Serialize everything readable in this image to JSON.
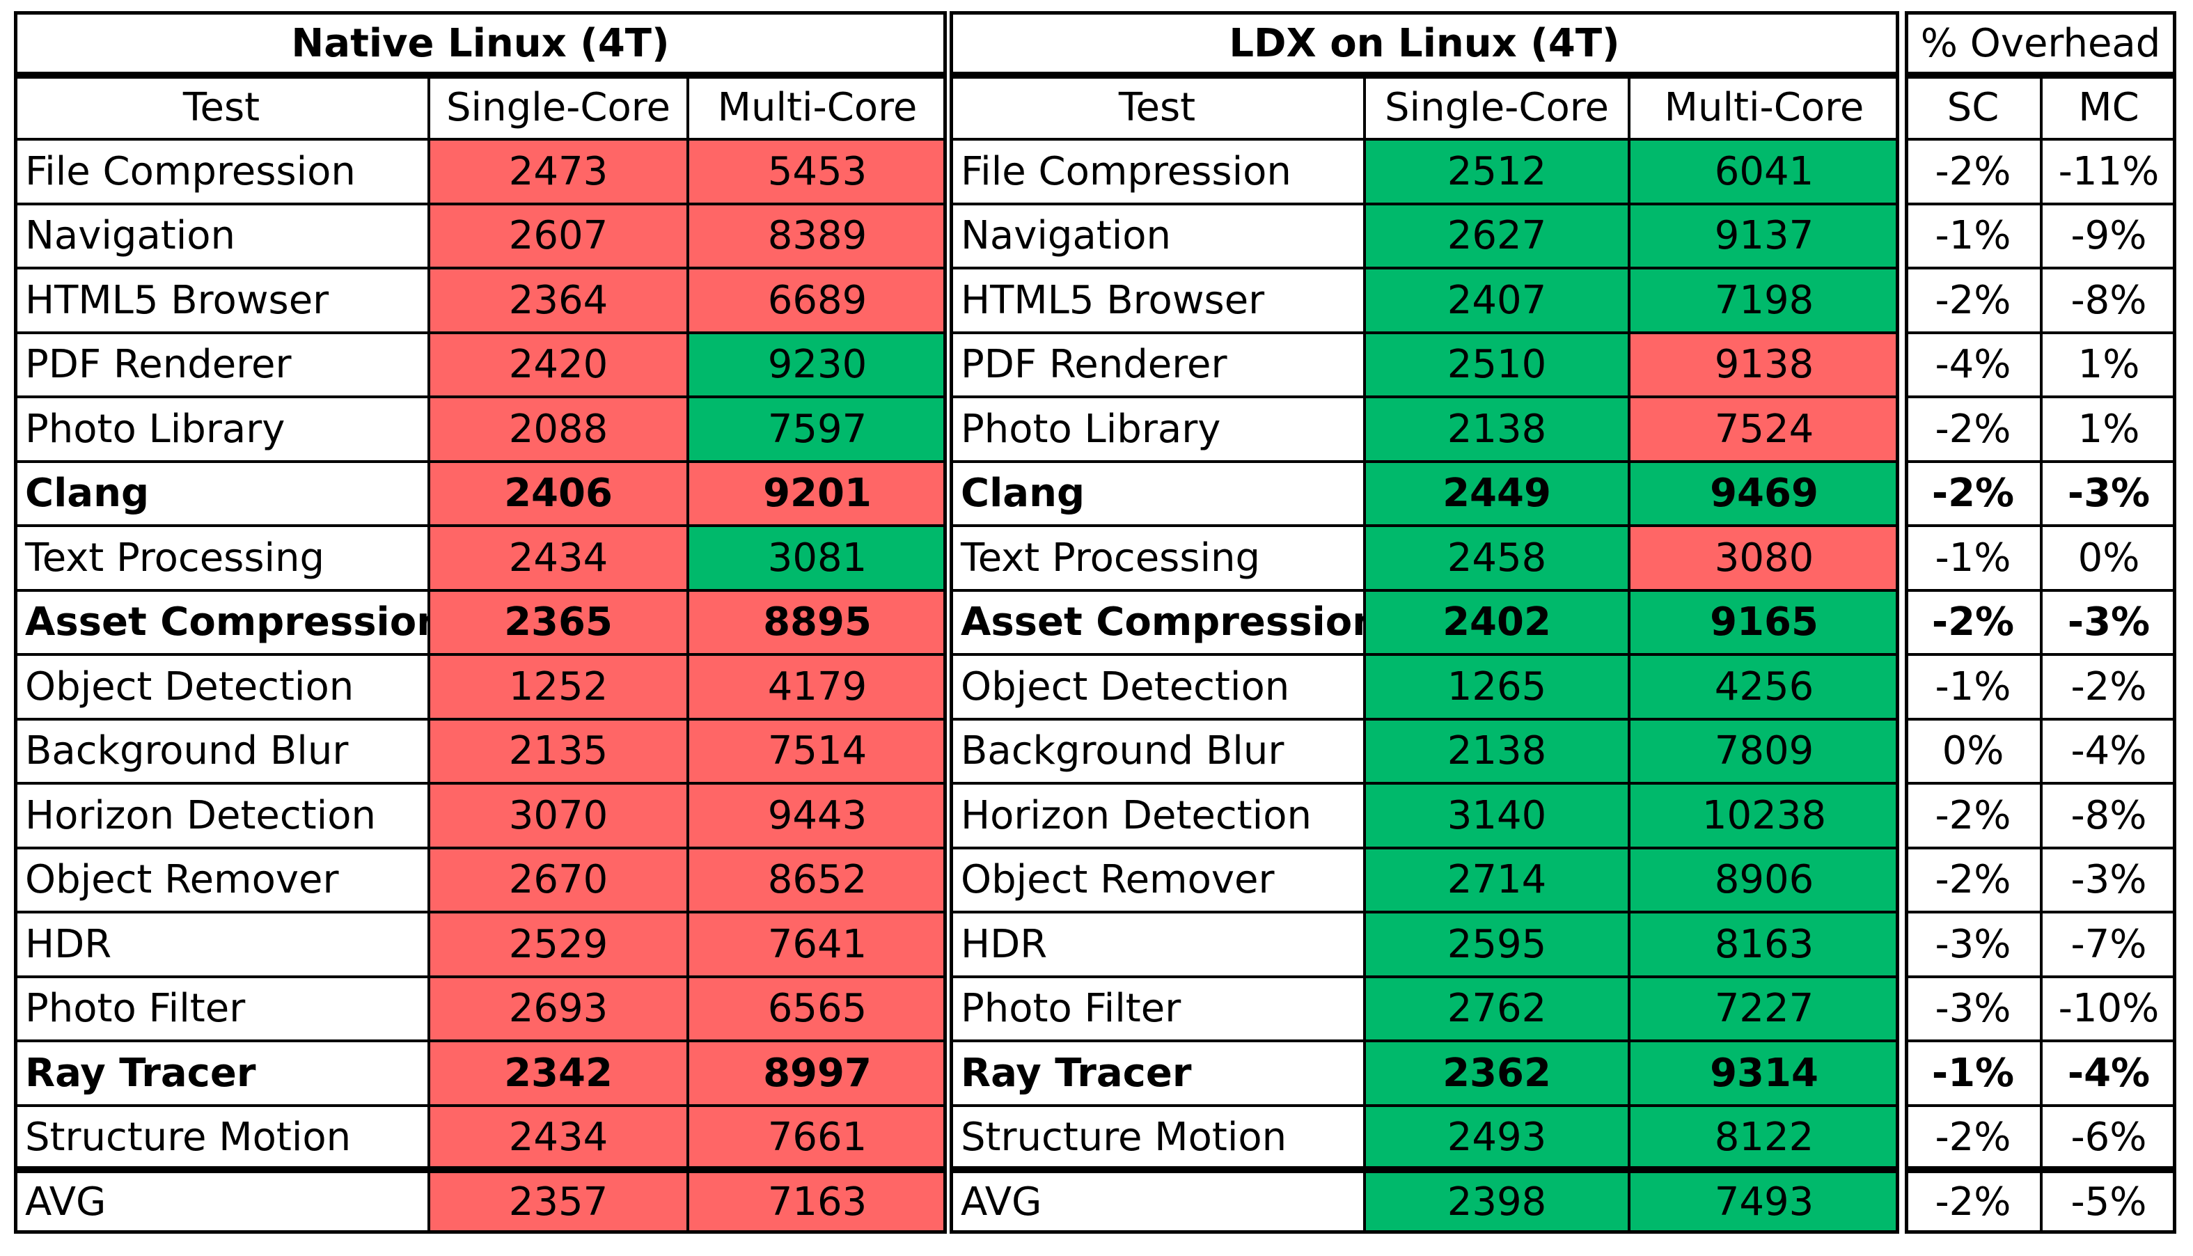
{
  "bold_rows": [
    5,
    7,
    14
  ],
  "native": {
    "title": "Native Linux (4T)",
    "header": [
      "Test",
      "Single-Core",
      "Multi-Core"
    ],
    "rows": [
      [
        "File Compression",
        2473,
        5453
      ],
      [
        "Navigation",
        2607,
        8389
      ],
      [
        "HTML5 Browser",
        2364,
        6689
      ],
      [
        "PDF Renderer",
        2420,
        9230
      ],
      [
        "Photo Library",
        2088,
        7597
      ],
      [
        "Clang",
        2406,
        9201
      ],
      [
        "Text Processing",
        2434,
        3081
      ],
      [
        "Asset Compression",
        2365,
        8895
      ],
      [
        "Object Detection",
        1252,
        4179
      ],
      [
        "Background Blur",
        2135,
        7514
      ],
      [
        "Horizon Detection",
        3070,
        9443
      ],
      [
        "Object Remover",
        2670,
        8652
      ],
      [
        "HDR",
        2529,
        7641
      ],
      [
        "Photo Filter",
        2693,
        6565
      ],
      [
        "Ray Tracer",
        2342,
        8997
      ],
      [
        "Structure Motion",
        2434,
        7661
      ]
    ],
    "fills": [
      [
        "#ff6666",
        "#ff6666"
      ],
      [
        "#ff6666",
        "#ff6666"
      ],
      [
        "#ff6666",
        "#ff6666"
      ],
      [
        "#ff6666",
        "#00b96b"
      ],
      [
        "#ff6666",
        "#00b96b"
      ],
      [
        "#ff6666",
        "#ff6666"
      ],
      [
        "#ff6666",
        "#00b96b"
      ],
      [
        "#ff6666",
        "#ff6666"
      ],
      [
        "#ff6666",
        "#ff6666"
      ],
      [
        "#ff6666",
        "#ff6666"
      ],
      [
        "#ff6666",
        "#ff6666"
      ],
      [
        "#ff6666",
        "#ff6666"
      ],
      [
        "#ff6666",
        "#ff6666"
      ],
      [
        "#ff6666",
        "#ff6666"
      ],
      [
        "#ff6666",
        "#ff6666"
      ],
      [
        "#ff6666",
        "#ff6666"
      ]
    ],
    "avg": [
      "AVG",
      2357,
      7163
    ],
    "avg_fills": [
      "#ff6666",
      "#ff6666"
    ]
  },
  "ldx": {
    "title": "LDX on Linux (4T)",
    "header": [
      "Test",
      "Single-Core",
      "Multi-Core"
    ],
    "rows": [
      [
        "File Compression",
        2512,
        6041
      ],
      [
        "Navigation",
        2627,
        9137
      ],
      [
        "HTML5 Browser",
        2407,
        7198
      ],
      [
        "PDF Renderer",
        2510,
        9138
      ],
      [
        "Photo Library",
        2138,
        7524
      ],
      [
        "Clang",
        2449,
        9469
      ],
      [
        "Text Processing",
        2458,
        3080
      ],
      [
        "Asset Compression",
        2402,
        9165
      ],
      [
        "Object Detection",
        1265,
        4256
      ],
      [
        "Background Blur",
        2138,
        7809
      ],
      [
        "Horizon Detection",
        3140,
        10238
      ],
      [
        "Object Remover",
        2714,
        8906
      ],
      [
        "HDR",
        2595,
        8163
      ],
      [
        "Photo Filter",
        2762,
        7227
      ],
      [
        "Ray Tracer",
        2362,
        9314
      ],
      [
        "Structure Motion",
        2493,
        8122
      ]
    ],
    "fills": [
      [
        "#00b96b",
        "#00b96b"
      ],
      [
        "#00b96b",
        "#00b96b"
      ],
      [
        "#00b96b",
        "#00b96b"
      ],
      [
        "#00b96b",
        "#ff6666"
      ],
      [
        "#00b96b",
        "#ff6666"
      ],
      [
        "#00b96b",
        "#00b96b"
      ],
      [
        "#00b96b",
        "#ff6666"
      ],
      [
        "#00b96b",
        "#00b96b"
      ],
      [
        "#00b96b",
        "#00b96b"
      ],
      [
        "#00b96b",
        "#00b96b"
      ],
      [
        "#00b96b",
        "#00b96b"
      ],
      [
        "#00b96b",
        "#00b96b"
      ],
      [
        "#00b96b",
        "#00b96b"
      ],
      [
        "#00b96b",
        "#00b96b"
      ],
      [
        "#00b96b",
        "#00b96b"
      ],
      [
        "#00b96b",
        "#00b96b"
      ]
    ],
    "avg": [
      "AVG",
      2398,
      7493
    ],
    "avg_fills": [
      "#00b96b",
      "#00b96b"
    ]
  },
  "overhead": {
    "title": "% Overhead",
    "header": [
      "SC",
      "MC"
    ],
    "rows": [
      [
        "-2%",
        "-11%"
      ],
      [
        "-1%",
        "-9%"
      ],
      [
        "-2%",
        "-8%"
      ],
      [
        "-4%",
        "1%"
      ],
      [
        "-2%",
        "1%"
      ],
      [
        "-2%",
        "-3%"
      ],
      [
        "-1%",
        "0%"
      ],
      [
        "-2%",
        "-3%"
      ],
      [
        "-1%",
        "-2%"
      ],
      [
        "0%",
        "-4%"
      ],
      [
        "-2%",
        "-8%"
      ],
      [
        "-2%",
        "-3%"
      ],
      [
        "-3%",
        "-7%"
      ],
      [
        "-3%",
        "-10%"
      ],
      [
        "-1%",
        "-4%"
      ],
      [
        "-2%",
        "-6%"
      ]
    ],
    "avg": [
      "-2%",
      "-5%"
    ]
  }
}
